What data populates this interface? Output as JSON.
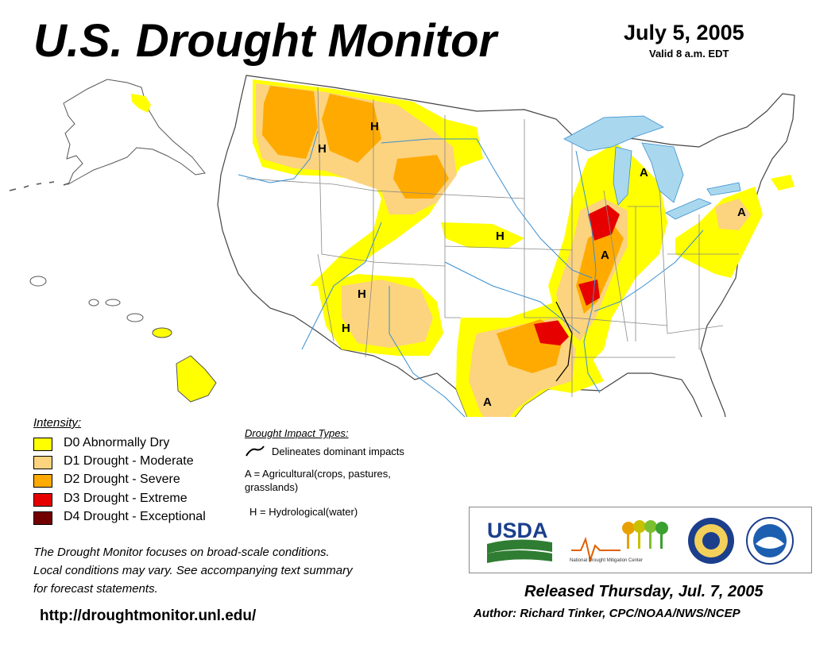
{
  "header": {
    "title": "U.S. Drought Monitor",
    "date": "July 5, 2005",
    "valid": "Valid 8 a.m. EDT"
  },
  "legend": {
    "title": "Intensity:",
    "items": [
      {
        "label": "D0 Abnormally Dry",
        "color": "#ffff00"
      },
      {
        "label": "D1 Drought - Moderate",
        "color": "#fcd37f"
      },
      {
        "label": "D2 Drought - Severe",
        "color": "#ffaa00"
      },
      {
        "label": "D3 Drought - Extreme",
        "color": "#e60000"
      },
      {
        "label": "D4 Drought - Exceptional",
        "color": "#730000"
      }
    ]
  },
  "impacts": {
    "title": "Drought Impact Types:",
    "delineates": "Delineates dominant impacts",
    "agricultural": "A = Agricultural(crops, pastures, grasslands)",
    "hydrological": "H = Hydrological(water)"
  },
  "map_labels": {
    "H": "H",
    "A": "A"
  },
  "colors": {
    "water": "#a9d8ee",
    "river": "#3a8fd0",
    "border": "#888888",
    "d0": "#ffff00",
    "d1": "#fcd37f",
    "d2": "#ffaa00",
    "d3": "#e60000"
  },
  "note": {
    "line1": "The Drought Monitor focuses on broad-scale conditions.",
    "line2": "Local conditions may vary. See accompanying text summary",
    "line3": "for forecast statements."
  },
  "url": "http://droughtmonitor.unl.edu/",
  "logos": {
    "usda": "USDA",
    "ndmc": "National Drought Mitigation Center"
  },
  "footer": {
    "released": "Released Thursday, Jul. 7, 2005",
    "author": "Author: Richard Tinker, CPC/NOAA/NWS/NCEP"
  }
}
